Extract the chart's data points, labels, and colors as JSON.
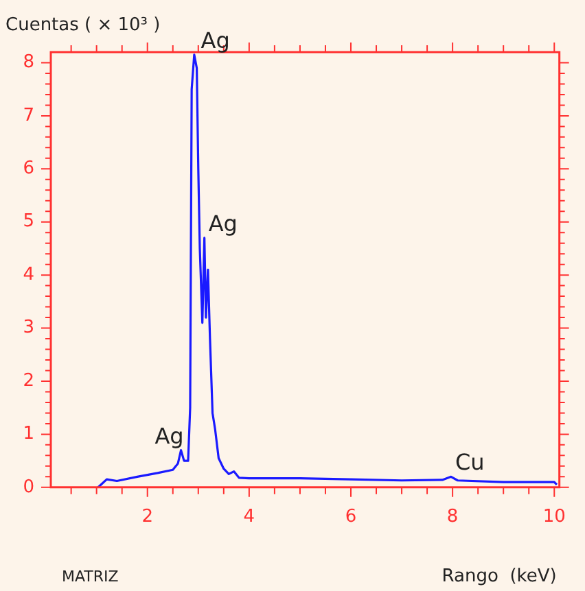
{
  "chart_data": {
    "type": "line",
    "ylabel": "Cuentas ( × 10³ )",
    "xlabel": "Rango  (keV)",
    "color": "#1a1aff",
    "marker": "none",
    "line_style": "solid",
    "grid": false,
    "legend": false,
    "x": [
      1.03,
      1.2,
      1.4,
      1.8,
      2.2,
      2.5,
      2.6,
      2.66,
      2.72,
      2.8,
      2.84,
      2.87,
      2.92,
      2.97,
      3.0,
      3.03,
      3.08,
      3.12,
      3.15,
      3.19,
      3.23,
      3.28,
      3.33,
      3.4,
      3.5,
      3.6,
      3.7,
      3.8,
      4.0,
      5.0,
      6.0,
      7.0,
      7.8,
      7.97,
      8.1,
      9.0,
      10.0,
      10.05
    ],
    "values": [
      0,
      0.15,
      0.12,
      0.2,
      0.27,
      0.33,
      0.45,
      0.7,
      0.5,
      0.5,
      1.5,
      7.5,
      8.15,
      7.9,
      6.0,
      4.5,
      3.1,
      4.7,
      3.2,
      4.1,
      2.8,
      1.4,
      1.1,
      0.55,
      0.35,
      0.25,
      0.3,
      0.18,
      0.17,
      0.17,
      0.15,
      0.13,
      0.14,
      0.2,
      0.13,
      0.1,
      0.1,
      0.05
    ],
    "xlim": [
      0.1,
      10.1
    ],
    "ylim": [
      0,
      8.2
    ],
    "xticks": [
      {
        "value": 0.5,
        "label": null
      },
      {
        "value": 1,
        "label": null
      },
      {
        "value": 1.5,
        "label": null
      },
      2,
      {
        "value": 2.5,
        "label": null
      },
      {
        "value": 3,
        "label": null
      },
      {
        "value": 3.5,
        "label": null
      },
      4,
      {
        "value": 4.5,
        "label": null
      },
      {
        "value": 5,
        "label": null
      },
      {
        "value": 5.5,
        "label": null
      },
      6,
      {
        "value": 6.5,
        "label": null
      },
      {
        "value": 7,
        "label": null
      },
      {
        "value": 7.5,
        "label": null
      },
      8,
      {
        "value": 8.5,
        "label": null
      },
      {
        "value": 9,
        "label": null
      },
      {
        "value": 9.5,
        "label": null
      },
      10
    ],
    "yticks": [
      0,
      {
        "value": 0.2,
        "label": null
      },
      {
        "value": 0.4,
        "label": null
      },
      {
        "value": 0.6,
        "label": null
      },
      {
        "value": 0.8,
        "label": null
      },
      1,
      {
        "value": 1.2,
        "label": null
      },
      {
        "value": 1.4,
        "label": null
      },
      {
        "value": 1.6,
        "label": null
      },
      {
        "value": 1.8,
        "label": null
      },
      2,
      {
        "value": 2.2,
        "label": null
      },
      {
        "value": 2.4,
        "label": null
      },
      {
        "value": 2.6,
        "label": null
      },
      {
        "value": 2.8,
        "label": null
      },
      3,
      {
        "value": 3.2,
        "label": null
      },
      {
        "value": 3.4,
        "label": null
      },
      {
        "value": 3.6,
        "label": null
      },
      {
        "value": 3.8,
        "label": null
      },
      4,
      {
        "value": 4.2,
        "label": null
      },
      {
        "value": 4.4,
        "label": null
      },
      {
        "value": 4.6,
        "label": null
      },
      {
        "value": 4.8,
        "label": null
      },
      5,
      {
        "value": 5.2,
        "label": null
      },
      {
        "value": 5.4,
        "label": null
      },
      {
        "value": 5.6,
        "label": null
      },
      {
        "value": 5.8,
        "label": null
      },
      6,
      {
        "value": 6.2,
        "label": null
      },
      {
        "value": 6.4,
        "label": null
      },
      {
        "value": 6.6,
        "label": null
      },
      {
        "value": 6.8,
        "label": null
      },
      7,
      {
        "value": 7.2,
        "label": null
      },
      {
        "value": 7.4,
        "label": null
      },
      {
        "value": 7.6,
        "label": null
      },
      {
        "value": 7.8,
        "label": null
      },
      8
    ],
    "annotations": [
      {
        "text": "Ag",
        "x": 2.97,
        "y": 8.15
      },
      {
        "text": "Ag",
        "x": 3.12,
        "y": 4.7
      },
      {
        "text": "Ag",
        "x": 2.66,
        "y": 0.7
      },
      {
        "text": "Cu",
        "x": 7.97,
        "y": 0.2
      },
      "MATRIZ"
    ]
  }
}
